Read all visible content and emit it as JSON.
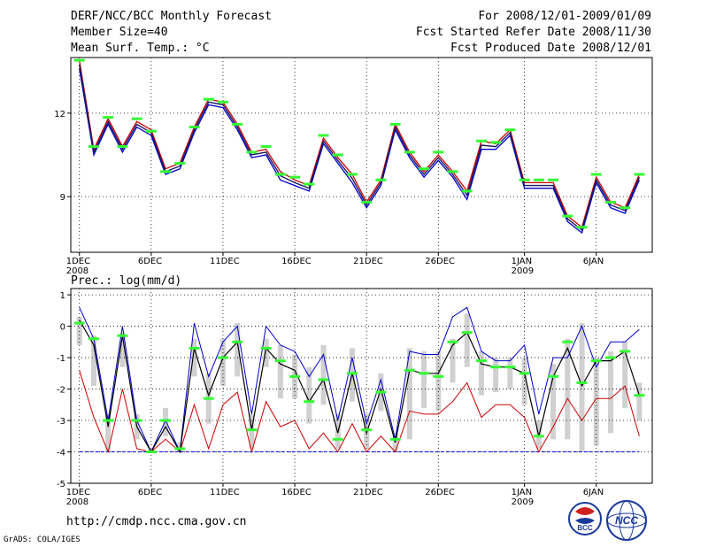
{
  "header": {
    "title": "DERF/NCC/BCC Monthly Forecast",
    "member_size": "Member Size=40",
    "variable_temp": "Mean Surf. Temp.: °C",
    "forecast_period": "For 2008/12/01-2009/01/09",
    "started_date": "Fcst Started Refer Date 2008/11/30",
    "produced_date": "Fcst Produced Date 2008/12/01"
  },
  "prec_label": "Prec.: log(mm/d)",
  "url": "http://cmdp.ncc.cma.gov.cn",
  "grads_credit": "GrADS: COLA/IGES",
  "logos": {
    "bcc_text": "BCC",
    "ncc_text": "NCC"
  },
  "colors": {
    "ensemble_max": "#0000cc",
    "ensemble_min": "#cc0000",
    "mean": "#000000",
    "obs_marker": "#33ff33",
    "spread_bar": "#d0d0d0"
  },
  "x_ticks": [
    {
      "day": 1,
      "label": "1DEC",
      "year": "2008"
    },
    {
      "day": 6,
      "label": "6DEC",
      "year": ""
    },
    {
      "day": 11,
      "label": "11DEC",
      "year": ""
    },
    {
      "day": 16,
      "label": "16DEC",
      "year": ""
    },
    {
      "day": 21,
      "label": "21DEC",
      "year": ""
    },
    {
      "day": 26,
      "label": "26DEC",
      "year": ""
    },
    {
      "day": 32,
      "label": "1JAN",
      "year": "2009"
    },
    {
      "day": 37,
      "label": "6JAN",
      "year": ""
    }
  ],
  "chart_data": [
    {
      "type": "line",
      "title": "Mean Surf. Temp.: °C",
      "x": [
        1,
        2,
        3,
        4,
        5,
        6,
        7,
        8,
        9,
        10,
        11,
        12,
        13,
        14,
        15,
        16,
        17,
        18,
        19,
        20,
        21,
        22,
        23,
        24,
        25,
        26,
        27,
        28,
        29,
        30,
        31,
        32,
        33,
        34,
        35,
        36,
        37,
        38,
        39,
        40
      ],
      "xlim": [
        0.4,
        40.9
      ],
      "ylim": [
        7.0,
        14.0
      ],
      "yticks": [
        9,
        12
      ],
      "series": [
        {
          "name": "upper",
          "values": [
            13.9,
            10.7,
            11.8,
            10.8,
            11.7,
            11.4,
            10.0,
            10.2,
            11.5,
            12.5,
            12.4,
            11.6,
            10.6,
            10.7,
            9.9,
            9.6,
            9.4,
            11.1,
            10.4,
            9.8,
            8.8,
            9.6,
            11.6,
            10.6,
            9.9,
            10.5,
            9.9,
            9.2,
            11.0,
            10.9,
            11.4,
            9.5,
            9.5,
            9.5,
            8.3,
            7.9,
            9.7,
            8.8,
            8.6,
            9.8
          ]
        },
        {
          "name": "lower",
          "values": [
            13.6,
            10.5,
            11.6,
            10.6,
            11.5,
            11.2,
            9.8,
            10.0,
            11.3,
            12.3,
            12.2,
            11.4,
            10.4,
            10.5,
            9.6,
            9.4,
            9.2,
            10.9,
            10.2,
            9.5,
            8.6,
            9.4,
            11.4,
            10.4,
            9.7,
            10.3,
            9.7,
            8.9,
            10.7,
            10.7,
            11.2,
            9.3,
            9.3,
            9.3,
            8.1,
            7.7,
            9.5,
            8.6,
            8.4,
            9.6
          ]
        },
        {
          "name": "mean",
          "values": [
            13.75,
            10.6,
            11.7,
            10.7,
            11.6,
            11.3,
            9.9,
            10.1,
            11.4,
            12.4,
            12.3,
            11.5,
            10.5,
            10.6,
            9.75,
            9.5,
            9.3,
            11.0,
            10.3,
            9.65,
            8.7,
            9.5,
            11.5,
            10.5,
            9.8,
            10.4,
            9.8,
            9.05,
            10.85,
            10.8,
            11.3,
            9.4,
            9.4,
            9.4,
            8.2,
            7.8,
            9.6,
            8.7,
            8.5,
            9.7
          ]
        },
        {
          "name": "markers",
          "values": [
            13.9,
            10.8,
            11.85,
            10.8,
            11.8,
            11.35,
            9.9,
            10.2,
            11.5,
            12.5,
            12.4,
            11.6,
            10.6,
            10.8,
            9.8,
            9.7,
            9.45,
            11.2,
            10.5,
            9.8,
            8.8,
            9.6,
            11.6,
            10.6,
            10.0,
            10.6,
            9.9,
            9.2,
            11.0,
            10.95,
            11.4,
            9.6,
            9.6,
            9.6,
            8.3,
            7.9,
            9.8,
            8.8,
            8.6,
            9.8
          ]
        }
      ]
    },
    {
      "type": "line",
      "title": "Prec.: log(mm/d)",
      "x": [
        1,
        2,
        3,
        4,
        5,
        6,
        7,
        8,
        9,
        10,
        11,
        12,
        13,
        14,
        15,
        16,
        17,
        18,
        19,
        20,
        21,
        22,
        23,
        24,
        25,
        26,
        27,
        28,
        29,
        30,
        31,
        32,
        33,
        34,
        35,
        36,
        37,
        38,
        39,
        40
      ],
      "xlim": [
        0.4,
        40.9
      ],
      "ylim": [
        -5,
        1.2
      ],
      "yticks": [
        1,
        0,
        -1,
        -2,
        -3,
        -4,
        -5
      ],
      "baseline": -4,
      "series": [
        {
          "name": "max",
          "values": [
            0.6,
            -0.4,
            -3.0,
            0.0,
            -3.0,
            -4.0,
            -3.0,
            -4.0,
            0.1,
            -1.6,
            -0.5,
            0.0,
            -2.8,
            0.0,
            -0.6,
            -0.8,
            -1.6,
            -0.9,
            -3.0,
            -1.0,
            -3.1,
            -1.7,
            -3.6,
            -0.8,
            -0.9,
            -0.9,
            0.3,
            0.6,
            -0.8,
            -1.1,
            -1.1,
            -0.6,
            -2.8,
            -1.0,
            -1.0,
            0.0,
            -1.3,
            -0.5,
            -0.5,
            -0.1
          ]
        },
        {
          "name": "mean",
          "values": [
            0.2,
            -0.6,
            -3.2,
            -0.3,
            -3.2,
            -4.0,
            -3.2,
            -4.0,
            -0.7,
            -2.2,
            -1.0,
            -0.5,
            -3.3,
            -0.7,
            -1.2,
            -1.4,
            -2.4,
            -1.7,
            -3.4,
            -1.5,
            -3.4,
            -2.0,
            -3.7,
            -1.4,
            -1.5,
            -1.5,
            -0.6,
            -0.2,
            -1.2,
            -1.3,
            -1.3,
            -1.5,
            -3.5,
            -1.6,
            -0.7,
            -1.9,
            -1.1,
            -1.1,
            -0.8,
            -2.2
          ]
        },
        {
          "name": "min",
          "values": [
            -1.4,
            -2.9,
            -4.0,
            -2.0,
            -3.9,
            -4.0,
            -3.6,
            -4.0,
            -2.5,
            -3.9,
            -2.5,
            -2.1,
            -4.0,
            -2.4,
            -3.2,
            -3.0,
            -3.9,
            -3.4,
            -4.0,
            -3.1,
            -4.0,
            -3.5,
            -4.0,
            -2.7,
            -2.8,
            -2.8,
            -2.4,
            -1.8,
            -2.9,
            -2.5,
            -2.5,
            -2.9,
            -4.0,
            -3.2,
            -2.3,
            -3.0,
            -2.3,
            -2.3,
            -1.9,
            -3.5
          ]
        },
        {
          "name": "spread_top",
          "values": [
            0.3,
            -0.3,
            -2.8,
            -0.2,
            -2.8,
            -3.9,
            -2.6,
            -3.7,
            -0.4,
            -1.5,
            -0.4,
            0.1,
            -2.8,
            -0.4,
            -0.6,
            -0.9,
            -1.3,
            -0.6,
            -2.8,
            -0.7,
            -2.8,
            -1.5,
            -3.4,
            -0.7,
            -0.8,
            -0.8,
            -0.4,
            0.4,
            -0.8,
            -1.0,
            -1.0,
            -1.0,
            -3.0,
            -1.2,
            -0.4,
            0.1,
            -1.0,
            -0.8,
            -0.5,
            -1.8
          ]
        },
        {
          "name": "spread_bottom",
          "values": [
            -0.6,
            -1.9,
            -4.0,
            -1.3,
            -3.6,
            -4.0,
            -3.5,
            -4.0,
            -1.6,
            -3.1,
            -1.9,
            -1.6,
            -3.9,
            -1.3,
            -2.3,
            -2.3,
            -3.1,
            -2.5,
            -3.9,
            -2.4,
            -3.9,
            -2.7,
            -4.0,
            -3.6,
            -2.6,
            -2.7,
            -1.8,
            -1.3,
            -2.2,
            -2.1,
            -2.0,
            -2.5,
            -3.9,
            -3.6,
            -3.6,
            -4.0,
            -3.8,
            -3.4,
            -2.6,
            -3.0
          ]
        },
        {
          "name": "markers",
          "values": [
            0.1,
            -0.4,
            -3.0,
            -0.3,
            -3.0,
            -4.0,
            -3.0,
            -3.9,
            -0.7,
            -2.3,
            -1.0,
            -0.5,
            -3.3,
            -0.7,
            -1.1,
            -1.6,
            -2.4,
            -1.7,
            -3.6,
            -1.5,
            -3.3,
            -2.1,
            -3.6,
            -1.4,
            -1.5,
            -1.6,
            -0.5,
            -0.2,
            -1.1,
            -1.3,
            -1.3,
            -1.5,
            -3.5,
            -1.6,
            -0.5,
            -1.8,
            -1.1,
            -1.0,
            -0.8,
            -2.2
          ]
        }
      ]
    }
  ]
}
